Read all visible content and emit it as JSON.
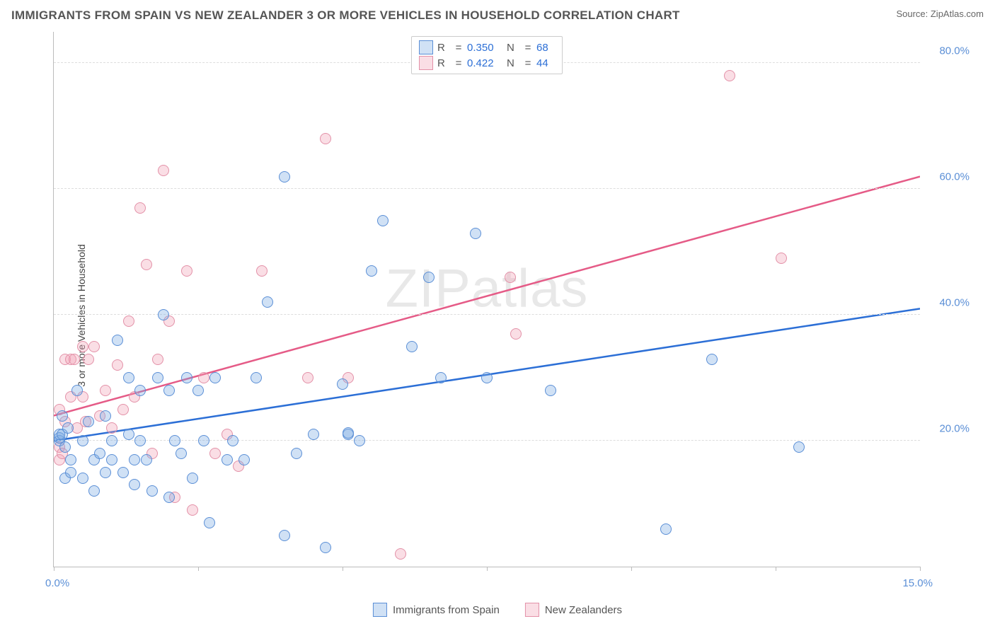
{
  "title": "IMMIGRANTS FROM SPAIN VS NEW ZEALANDER 3 OR MORE VEHICLES IN HOUSEHOLD CORRELATION CHART",
  "source_label": "Source: ",
  "source_name": "ZipAtlas.com",
  "watermark": "ZIPatlas",
  "ylabel": "3 or more Vehicles in Household",
  "chart": {
    "type": "scatter_with_regression",
    "xlim": [
      0,
      15
    ],
    "ylim": [
      0,
      85
    ],
    "xticks": [
      0,
      2.5,
      5.0,
      7.5,
      10.0,
      12.5,
      15.0
    ],
    "yticks": [
      20,
      40,
      60,
      80
    ],
    "ytick_labels": [
      "20.0%",
      "40.0%",
      "60.0%",
      "80.0%"
    ],
    "xtick_label_left": "0.0%",
    "xtick_label_right": "15.0%",
    "grid_color": "#dddddd",
    "background_color": "#ffffff",
    "point_radius": 8,
    "point_border_width": 1.5,
    "line_width": 2.5
  },
  "series": [
    {
      "key": "spain",
      "label": "Immigrants from Spain",
      "fill": "rgba(120,170,225,0.35)",
      "stroke": "#5b8fd6",
      "line_color": "#2c6fd6",
      "R": "0.350",
      "N": "68",
      "reg_y_at_x0": 20,
      "reg_y_at_xmax": 41,
      "points": [
        [
          0.1,
          20
        ],
        [
          0.1,
          20.5
        ],
        [
          0.1,
          21
        ],
        [
          0.15,
          24
        ],
        [
          0.15,
          21
        ],
        [
          0.2,
          19
        ],
        [
          0.2,
          14
        ],
        [
          0.25,
          22
        ],
        [
          0.3,
          17
        ],
        [
          0.3,
          15
        ],
        [
          0.4,
          28
        ],
        [
          0.5,
          20
        ],
        [
          0.5,
          14
        ],
        [
          0.6,
          23
        ],
        [
          0.7,
          17
        ],
        [
          0.7,
          12
        ],
        [
          0.8,
          18
        ],
        [
          0.9,
          24
        ],
        [
          0.9,
          15
        ],
        [
          1.0,
          17
        ],
        [
          1.0,
          20
        ],
        [
          1.1,
          36
        ],
        [
          1.2,
          15
        ],
        [
          1.3,
          30
        ],
        [
          1.3,
          21
        ],
        [
          1.4,
          17
        ],
        [
          1.4,
          13
        ],
        [
          1.5,
          20
        ],
        [
          1.5,
          28
        ],
        [
          1.6,
          17
        ],
        [
          1.7,
          12
        ],
        [
          1.8,
          30
        ],
        [
          1.9,
          40
        ],
        [
          2.0,
          28
        ],
        [
          2.0,
          11
        ],
        [
          2.1,
          20
        ],
        [
          2.2,
          18
        ],
        [
          2.3,
          30
        ],
        [
          2.4,
          14
        ],
        [
          2.5,
          28
        ],
        [
          2.6,
          20
        ],
        [
          2.7,
          7
        ],
        [
          2.8,
          30
        ],
        [
          3.0,
          17
        ],
        [
          3.1,
          20
        ],
        [
          3.3,
          17
        ],
        [
          3.5,
          30
        ],
        [
          3.7,
          42
        ],
        [
          4.0,
          62
        ],
        [
          4.2,
          18
        ],
        [
          4.5,
          21
        ],
        [
          4.7,
          3
        ],
        [
          5.0,
          29
        ],
        [
          5.1,
          21
        ],
        [
          5.1,
          21.2
        ],
        [
          5.3,
          20
        ],
        [
          5.5,
          47
        ],
        [
          5.7,
          55
        ],
        [
          6.2,
          35
        ],
        [
          6.5,
          46
        ],
        [
          6.7,
          30
        ],
        [
          7.3,
          53
        ],
        [
          7.5,
          30
        ],
        [
          8.6,
          28
        ],
        [
          10.6,
          6
        ],
        [
          11.4,
          33
        ],
        [
          12.9,
          19
        ],
        [
          4.0,
          5
        ]
      ]
    },
    {
      "key": "nz",
      "label": "New Zealanders",
      "fill": "rgba(240,160,180,0.35)",
      "stroke": "#e391a8",
      "line_color": "#e55b87",
      "R": "0.422",
      "N": "44",
      "reg_y_at_x0": 24,
      "reg_y_at_xmax": 62,
      "points": [
        [
          0.1,
          17
        ],
        [
          0.1,
          25
        ],
        [
          0.1,
          19
        ],
        [
          0.15,
          18
        ],
        [
          0.2,
          33
        ],
        [
          0.2,
          23
        ],
        [
          0.3,
          33
        ],
        [
          0.3,
          27
        ],
        [
          0.35,
          33
        ],
        [
          0.4,
          22
        ],
        [
          0.5,
          35
        ],
        [
          0.5,
          27
        ],
        [
          0.55,
          23
        ],
        [
          0.6,
          33
        ],
        [
          0.7,
          35
        ],
        [
          0.8,
          24
        ],
        [
          0.9,
          28
        ],
        [
          1.0,
          22
        ],
        [
          1.1,
          32
        ],
        [
          1.2,
          25
        ],
        [
          1.3,
          39
        ],
        [
          1.4,
          27
        ],
        [
          1.5,
          57
        ],
        [
          1.6,
          48
        ],
        [
          1.7,
          18
        ],
        [
          1.8,
          33
        ],
        [
          1.9,
          63
        ],
        [
          2.0,
          39
        ],
        [
          2.1,
          11
        ],
        [
          2.3,
          47
        ],
        [
          2.4,
          9
        ],
        [
          2.6,
          30
        ],
        [
          2.8,
          18
        ],
        [
          3.0,
          21
        ],
        [
          3.2,
          16
        ],
        [
          3.6,
          47
        ],
        [
          4.4,
          30
        ],
        [
          4.7,
          68
        ],
        [
          5.1,
          30
        ],
        [
          6.0,
          2
        ],
        [
          7.9,
          46
        ],
        [
          8.0,
          37
        ],
        [
          11.7,
          78
        ],
        [
          12.6,
          49
        ]
      ]
    }
  ],
  "legend_top": {
    "R_label": "R",
    "N_label": "N",
    "eq": "="
  }
}
